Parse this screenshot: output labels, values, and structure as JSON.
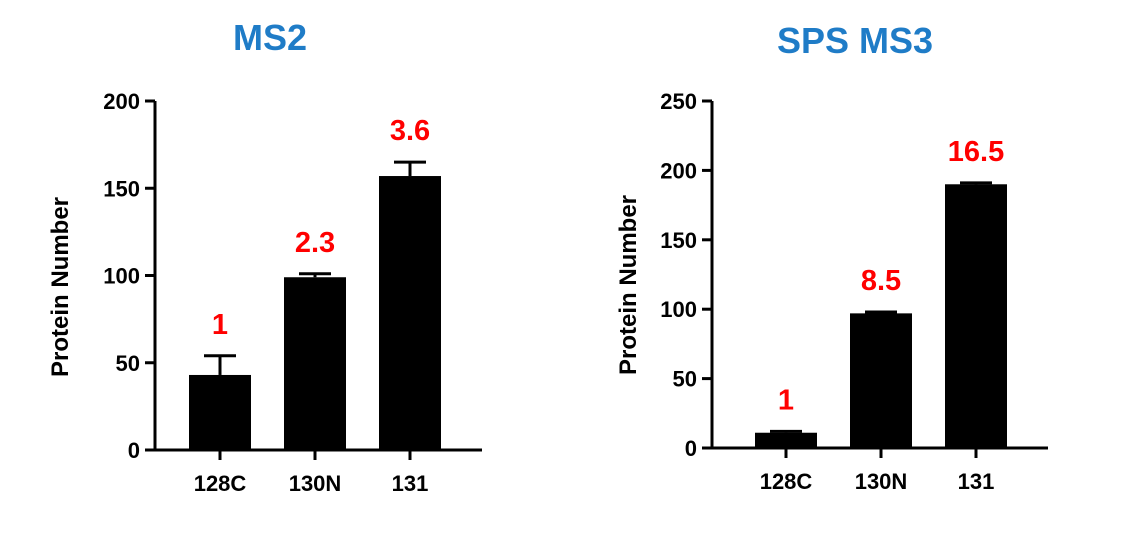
{
  "colors": {
    "title": "#1F7CC7",
    "bar": "#000000",
    "annotation": "#FF0000",
    "axis": "#000000"
  },
  "chart_data": [
    {
      "type": "bar",
      "title": "MS2",
      "xlabel": "",
      "ylabel": "Protein Number",
      "categories": [
        "128C",
        "130N",
        "131"
      ],
      "values": [
        43,
        99,
        157
      ],
      "error": [
        11,
        2,
        8
      ],
      "annotations": [
        "1",
        "2.3",
        "3.6"
      ],
      "ylim": [
        0,
        200
      ],
      "yticks": [
        0,
        50,
        100,
        150,
        200
      ],
      "grid": false,
      "legend": "none"
    },
    {
      "type": "bar",
      "title": "SPS MS3",
      "xlabel": "",
      "ylabel": "Protein Number",
      "categories": [
        "128C",
        "130N",
        "131"
      ],
      "values": [
        11,
        97,
        190
      ],
      "error": [
        1,
        1,
        1
      ],
      "annotations": [
        "1",
        "8.5",
        "16.5"
      ],
      "ylim": [
        0,
        250
      ],
      "yticks": [
        0,
        50,
        100,
        150,
        200,
        250
      ],
      "grid": false,
      "legend": "none"
    }
  ]
}
